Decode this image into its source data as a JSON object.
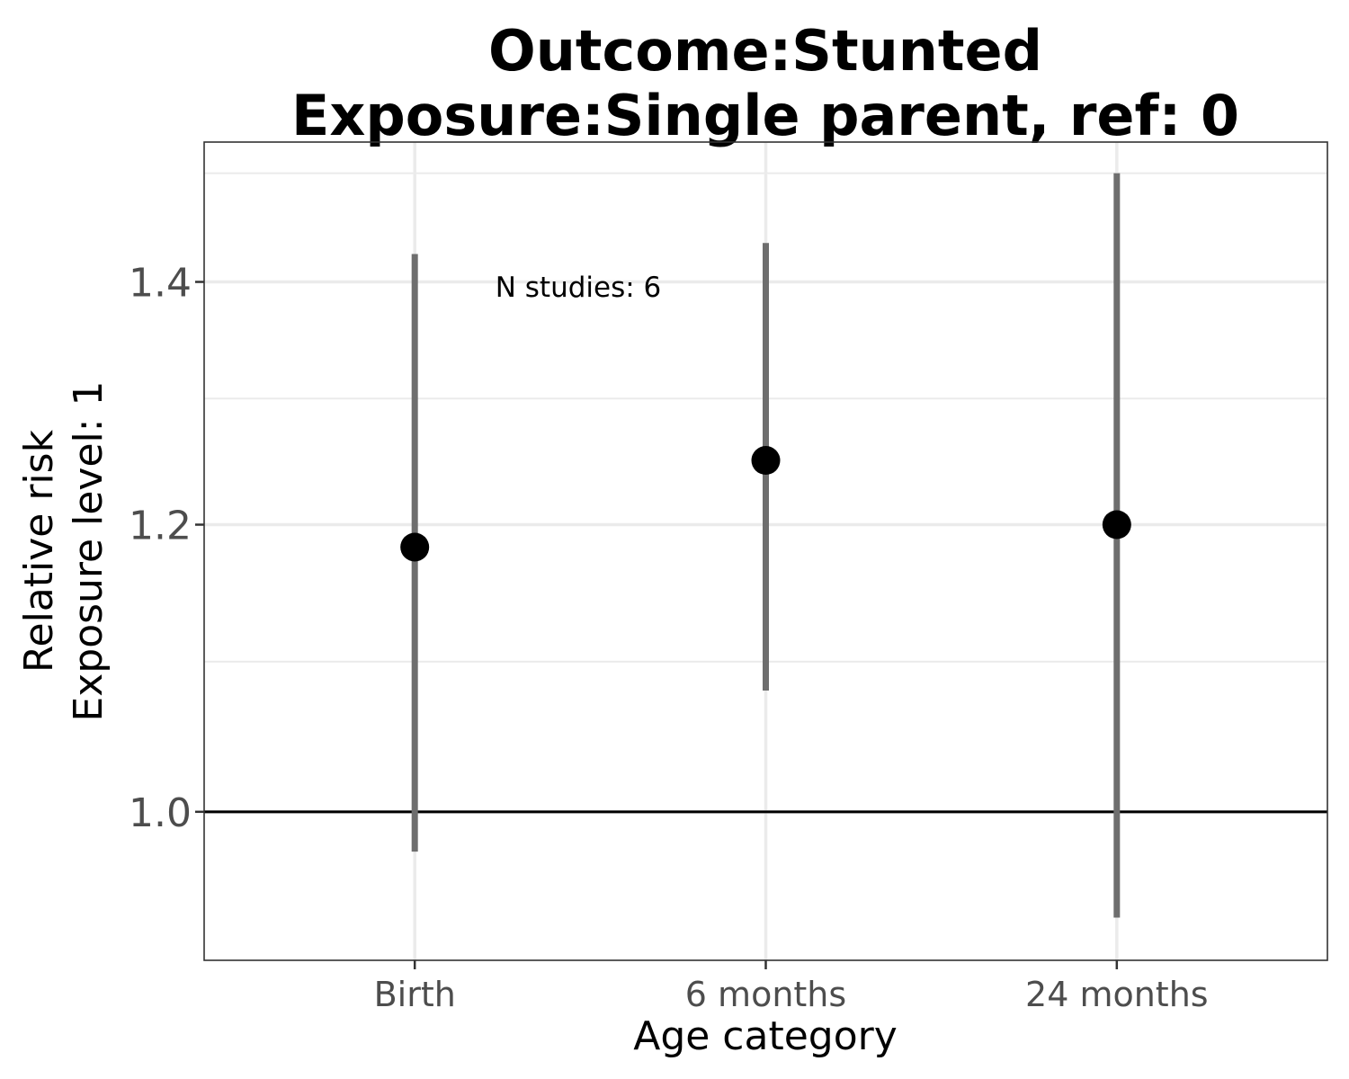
{
  "chart_data": {
    "type": "scatter",
    "title": [
      "Outcome:Stunted",
      "Exposure:Single parent, ref: 0"
    ],
    "xlabel": "Age category",
    "ylabel": [
      "Relative risk",
      "Exposure level: 1"
    ],
    "categories": [
      "Birth",
      "6 months",
      "24 months"
    ],
    "series": [
      {
        "estimate": [
          1.183,
          1.25,
          1.2
        ],
        "lower": [
          0.975,
          1.08,
          0.935
        ],
        "upper": [
          1.425,
          1.435,
          1.5
        ]
      }
    ],
    "ylim": [
      0.91,
      1.53
    ],
    "log_scale": true,
    "yticks": [
      1.0,
      1.2,
      1.4
    ],
    "ytick_labels": [
      "1.0",
      "1.2",
      "1.4"
    ],
    "minor_yticks": [
      1.1,
      1.3,
      1.5
    ],
    "reference_line": 1.0,
    "annotation": "N studies: 6",
    "grid": true,
    "colors": {
      "point": "#000000",
      "errorbar": "#6e6e6e",
      "grid": "#ebebeb",
      "reference": "#000000",
      "panel_border": "#333333"
    }
  }
}
